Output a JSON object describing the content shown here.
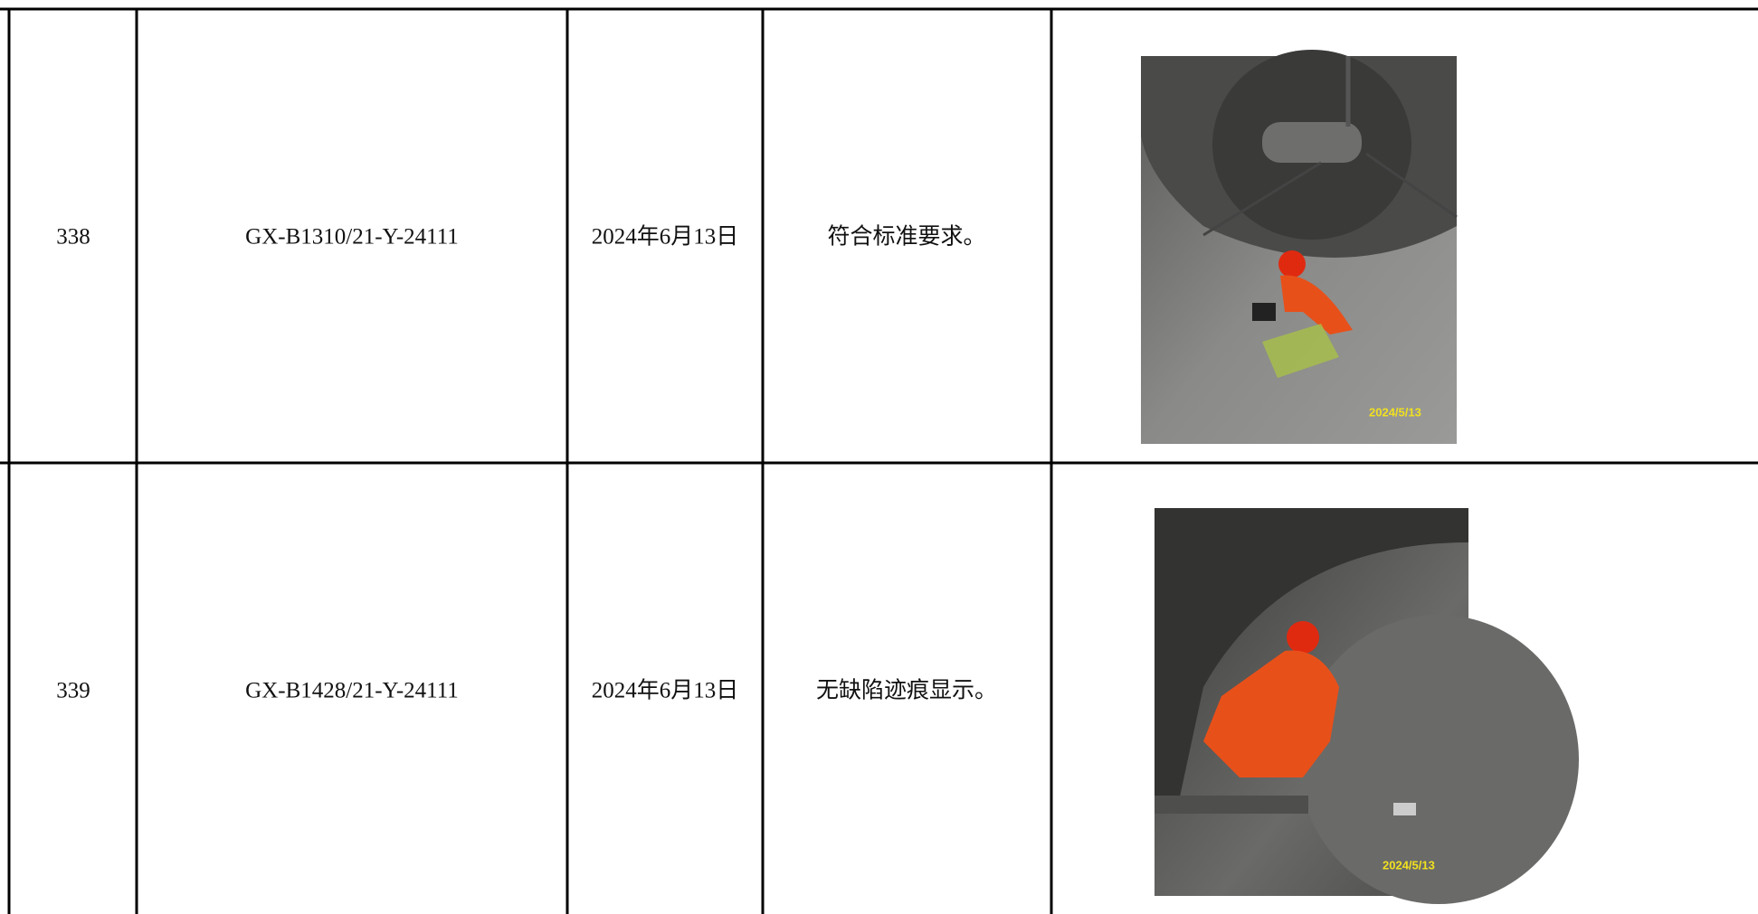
{
  "table": {
    "rows": [
      {
        "cells": [
          "338",
          "GX-B1310/21-Y-24111",
          "2024年6月13日",
          "符合标准要求。"
        ],
        "photo_stamp": "2024/5/13"
      },
      {
        "cells": [
          "339",
          "GX-B1428/21-Y-24111",
          "2024年6月13日",
          "无缺陷迹痕显示。"
        ],
        "photo_stamp": "2024/5/13"
      }
    ]
  }
}
